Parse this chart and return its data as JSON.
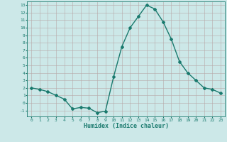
{
  "x": [
    0,
    1,
    2,
    3,
    4,
    5,
    6,
    7,
    8,
    9,
    10,
    11,
    12,
    13,
    14,
    15,
    16,
    17,
    18,
    19,
    20,
    21,
    22,
    23
  ],
  "y": [
    2,
    1.8,
    1.5,
    1.0,
    0.5,
    -0.8,
    -0.6,
    -0.7,
    -1.3,
    -1.1,
    3.5,
    7.5,
    10.0,
    11.5,
    13.0,
    12.5,
    10.8,
    8.5,
    5.5,
    4.0,
    3.0,
    2.0,
    1.8,
    1.3
  ],
  "line_color": "#1a7a6e",
  "marker": "D",
  "markersize": 2.0,
  "linewidth": 1.0,
  "bg_color": "#cce8e8",
  "grid_color": "#b8a8a8",
  "xlabel": "Humidex (Indice chaleur)",
  "ylim": [
    -1.8,
    13.5
  ],
  "xlim": [
    -0.5,
    23.5
  ],
  "yticks": [
    -1,
    0,
    1,
    2,
    3,
    4,
    5,
    6,
    7,
    8,
    9,
    10,
    11,
    12,
    13
  ],
  "xticks": [
    0,
    1,
    2,
    3,
    4,
    5,
    6,
    7,
    8,
    9,
    10,
    11,
    12,
    13,
    14,
    15,
    16,
    17,
    18,
    19,
    20,
    21,
    22,
    23
  ],
  "tick_color": "#1a7a6e",
  "label_color": "#1a7a6e",
  "axis_color": "#1a7a6e",
  "tick_fontsize": 4.5,
  "xlabel_fontsize": 6.0
}
